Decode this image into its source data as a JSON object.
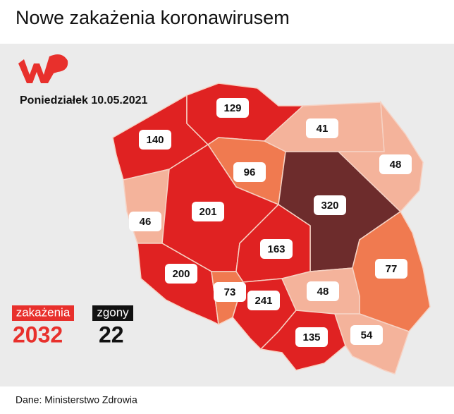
{
  "header": {
    "title": "Nowe zakażenia koronawirusem"
  },
  "map": {
    "date": "Poniedziałek 10.05.2021",
    "regions": [
      {
        "value": 140,
        "color": "#e02222"
      },
      {
        "value": 129,
        "color": "#e02222"
      },
      {
        "value": 41,
        "color": "#f4b39b"
      },
      {
        "value": 48,
        "color": "#f4b39b"
      },
      {
        "value": 96,
        "color": "#f07a50"
      },
      {
        "value": 320,
        "color": "#6d2c2c"
      },
      {
        "value": 46,
        "color": "#f4b39b"
      },
      {
        "value": 201,
        "color": "#e02222"
      },
      {
        "value": 163,
        "color": "#e02222"
      },
      {
        "value": 77,
        "color": "#f07a50"
      },
      {
        "value": 200,
        "color": "#e02222"
      },
      {
        "value": 73,
        "color": "#f07a50"
      },
      {
        "value": 241,
        "color": "#e02222"
      },
      {
        "value": 48,
        "color": "#f4b39b"
      },
      {
        "value": 135,
        "color": "#e02222"
      },
      {
        "value": 54,
        "color": "#f4b39b"
      }
    ]
  },
  "legend": {
    "cases": {
      "label": "zakażenia",
      "value": 2032,
      "color": "#e8302c"
    },
    "deaths": {
      "label": "zgony",
      "value": 22,
      "color": "#111111"
    }
  },
  "footer": {
    "source": "Dane: Ministerstwo Zdrowia"
  }
}
